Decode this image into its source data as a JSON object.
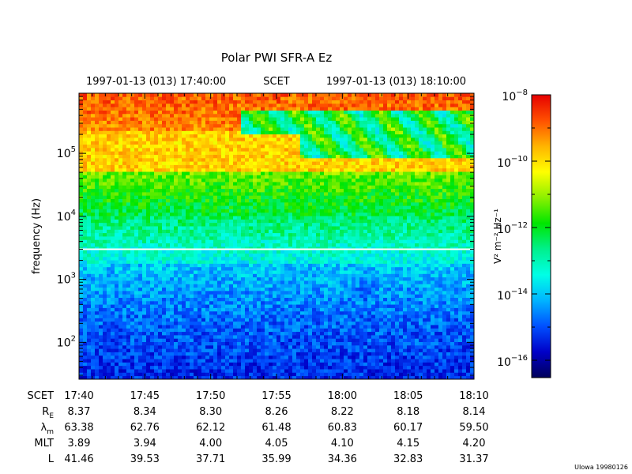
{
  "chart_data": {
    "type": "heatmap",
    "title": "Polar PWI SFR-A Ez",
    "time_header": {
      "start": "1997-01-13 (013) 17:40:00",
      "label": "SCET",
      "end": "1997-01-13 (013) 18:10:00"
    },
    "ylabel": "frequency (Hz)",
    "y_scale": "log",
    "ylim": [
      26,
      900000
    ],
    "y_ticks": [
      {
        "value": 100,
        "base": "10",
        "exp": "2"
      },
      {
        "value": 1000,
        "base": "10",
        "exp": "3"
      },
      {
        "value": 10000,
        "base": "10",
        "exp": "4"
      },
      {
        "value": 100000,
        "base": "10",
        "exp": "5"
      }
    ],
    "colorbar": {
      "label": "V² m⁻² Hz⁻¹",
      "scale": "log",
      "range": [
        3e-17,
        1e-08
      ],
      "colors": [
        "#00005a",
        "#0000c8",
        "#0050ff",
        "#00b4ff",
        "#00ffe6",
        "#00f08c",
        "#00e600",
        "#8cf000",
        "#ffff00",
        "#ffb400",
        "#ff5000",
        "#e60000"
      ],
      "ticks": [
        {
          "value": 1e-08,
          "base": "10",
          "exp": "−8"
        },
        {
          "value": 1e-10,
          "base": "10",
          "exp": "−10"
        },
        {
          "value": 1e-12,
          "base": "10",
          "exp": "−12"
        },
        {
          "value": 1e-14,
          "base": "10",
          "exp": "−14"
        },
        {
          "value": 1e-16,
          "base": "10",
          "exp": "−16"
        }
      ]
    },
    "ephemeris": {
      "columns": [
        "17:40",
        "17:45",
        "17:50",
        "17:55",
        "18:00",
        "18:05",
        "18:10"
      ],
      "rows": [
        {
          "label": "SCET",
          "values": [
            "17:40",
            "17:45",
            "17:50",
            "17:55",
            "18:00",
            "18:05",
            "18:10"
          ]
        },
        {
          "label": "R",
          "sub": "E",
          "values": [
            "8.37",
            "8.34",
            "8.30",
            "8.26",
            "8.22",
            "8.18",
            "8.14"
          ]
        },
        {
          "label": "λ",
          "sub": "m",
          "values": [
            "63.38",
            "62.76",
            "62.12",
            "61.48",
            "60.83",
            "60.17",
            "59.50"
          ]
        },
        {
          "label": "MLT",
          "values": [
            "3.89",
            "3.94",
            "4.00",
            "4.05",
            "4.10",
            "4.15",
            "4.20"
          ]
        },
        {
          "label": "L",
          "values": [
            "41.46",
            "39.53",
            "37.71",
            "35.99",
            "34.36",
            "32.83",
            "31.37"
          ]
        }
      ]
    },
    "credit": "UIowa 19980126"
  }
}
